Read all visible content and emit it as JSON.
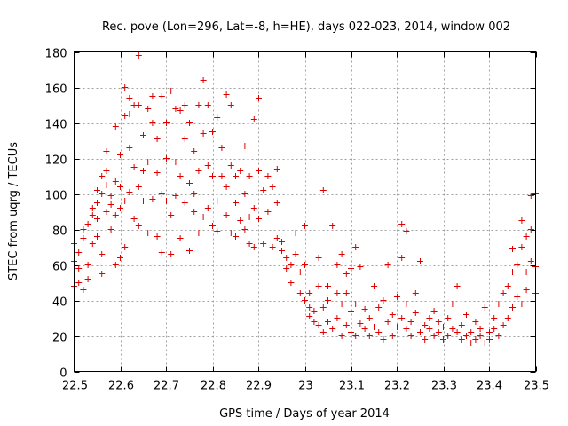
{
  "chart_data": {
    "type": "scatter",
    "title": "Rec. pove (Lon=296, Lat=-8, h=HE), days 022-023, 2014, window 002",
    "xlabel": "GPS time / Days of year 2014",
    "ylabel": "STEC from uqrg / TECUs",
    "xlim": [
      22.5,
      23.5
    ],
    "ylim": [
      0,
      180
    ],
    "grid": true,
    "marker": "plus",
    "color": "#e00000",
    "x_ticks": [
      22.5,
      22.6,
      22.7,
      22.8,
      22.9,
      23.0,
      23.1,
      23.2,
      23.3,
      23.4,
      23.5
    ],
    "x_tick_labels": [
      "22.5",
      "22.6",
      "22.7",
      "22.8",
      "22.9",
      "23",
      "23.1",
      "23.2",
      "23.3",
      "23.4",
      "23.5"
    ],
    "y_ticks": [
      0,
      20,
      40,
      60,
      80,
      100,
      120,
      140,
      160,
      180
    ],
    "y_tick_labels": [
      "0",
      "20",
      "40",
      "60",
      "80",
      "100",
      "120",
      "140",
      "160",
      "180"
    ],
    "series": [
      {
        "name": "STEC",
        "points": [
          [
            22.5,
            48
          ],
          [
            22.5,
            62
          ],
          [
            22.5,
            72
          ],
          [
            22.51,
            50
          ],
          [
            22.51,
            58
          ],
          [
            22.51,
            67
          ],
          [
            22.52,
            46
          ],
          [
            22.52,
            75
          ],
          [
            22.52,
            80
          ],
          [
            22.53,
            60
          ],
          [
            22.53,
            83
          ],
          [
            22.53,
            52
          ],
          [
            22.54,
            72
          ],
          [
            22.54,
            88
          ],
          [
            22.54,
            92
          ],
          [
            22.55,
            76
          ],
          [
            22.55,
            86
          ],
          [
            22.55,
            95
          ],
          [
            22.55,
            102
          ],
          [
            22.56,
            55
          ],
          [
            22.56,
            66
          ],
          [
            22.56,
            100
          ],
          [
            22.56,
            110
          ],
          [
            22.57,
            90
          ],
          [
            22.57,
            105
          ],
          [
            22.57,
            113
          ],
          [
            22.57,
            124
          ],
          [
            22.58,
            80
          ],
          [
            22.58,
            94
          ],
          [
            22.58,
            99
          ],
          [
            22.59,
            60
          ],
          [
            22.59,
            88
          ],
          [
            22.59,
            107
          ],
          [
            22.59,
            138
          ],
          [
            22.6,
            64
          ],
          [
            22.6,
            92
          ],
          [
            22.6,
            104
          ],
          [
            22.6,
            122
          ],
          [
            22.61,
            70
          ],
          [
            22.61,
            96
          ],
          [
            22.61,
            144
          ],
          [
            22.61,
            160
          ],
          [
            22.62,
            101
          ],
          [
            22.62,
            126
          ],
          [
            22.62,
            145
          ],
          [
            22.62,
            154
          ],
          [
            22.63,
            150
          ],
          [
            22.63,
            115
          ],
          [
            22.63,
            86
          ],
          [
            22.64,
            178
          ],
          [
            22.64,
            150
          ],
          [
            22.64,
            104
          ],
          [
            22.64,
            82
          ],
          [
            22.65,
            96
          ],
          [
            22.65,
            133
          ],
          [
            22.65,
            113
          ],
          [
            22.66,
            118
          ],
          [
            22.66,
            78
          ],
          [
            22.66,
            148
          ],
          [
            22.67,
            140
          ],
          [
            22.67,
            97
          ],
          [
            22.67,
            155
          ],
          [
            22.68,
            76
          ],
          [
            22.68,
            112
          ],
          [
            22.68,
            131
          ],
          [
            22.69,
            155
          ],
          [
            22.69,
            67
          ],
          [
            22.69,
            100
          ],
          [
            22.7,
            96
          ],
          [
            22.7,
            120
          ],
          [
            22.7,
            140
          ],
          [
            22.71,
            158
          ],
          [
            22.71,
            66
          ],
          [
            22.71,
            88
          ],
          [
            22.72,
            99
          ],
          [
            22.72,
            148
          ],
          [
            22.72,
            118
          ],
          [
            22.73,
            147
          ],
          [
            22.73,
            110
          ],
          [
            22.73,
            75
          ],
          [
            22.74,
            95
          ],
          [
            22.74,
            131
          ],
          [
            22.74,
            150
          ],
          [
            22.75,
            68
          ],
          [
            22.75,
            106
          ],
          [
            22.75,
            140
          ],
          [
            22.76,
            90
          ],
          [
            22.76,
            124
          ],
          [
            22.76,
            100
          ],
          [
            22.77,
            150
          ],
          [
            22.77,
            78
          ],
          [
            22.77,
            113
          ],
          [
            22.78,
            134
          ],
          [
            22.78,
            87
          ],
          [
            22.78,
            164
          ],
          [
            22.79,
            92
          ],
          [
            22.79,
            116
          ],
          [
            22.79,
            150
          ],
          [
            22.8,
            82
          ],
          [
            22.8,
            110
          ],
          [
            22.8,
            135
          ],
          [
            22.81,
            96
          ],
          [
            22.81,
            79
          ],
          [
            22.81,
            143
          ],
          [
            22.82,
            110
          ],
          [
            22.82,
            126
          ],
          [
            22.83,
            88
          ],
          [
            22.83,
            104
          ],
          [
            22.83,
            156
          ],
          [
            22.84,
            78
          ],
          [
            22.84,
            116
          ],
          [
            22.84,
            150
          ],
          [
            22.85,
            95
          ],
          [
            22.85,
            76
          ],
          [
            22.85,
            110
          ],
          [
            22.86,
            85
          ],
          [
            22.86,
            113
          ],
          [
            22.87,
            80
          ],
          [
            22.87,
            100
          ],
          [
            22.87,
            127
          ],
          [
            22.88,
            87
          ],
          [
            22.88,
            72
          ],
          [
            22.88,
            110
          ],
          [
            22.89,
            92
          ],
          [
            22.89,
            142
          ],
          [
            22.89,
            70
          ],
          [
            22.9,
            86
          ],
          [
            22.9,
            113
          ],
          [
            22.9,
            154
          ],
          [
            22.91,
            72
          ],
          [
            22.91,
            102
          ],
          [
            22.92,
            90
          ],
          [
            22.92,
            110
          ],
          [
            22.93,
            70
          ],
          [
            22.93,
            104
          ],
          [
            22.94,
            75
          ],
          [
            22.94,
            114
          ],
          [
            22.94,
            95
          ],
          [
            22.95,
            68
          ],
          [
            22.95,
            73
          ],
          [
            22.96,
            58
          ],
          [
            22.96,
            64
          ],
          [
            22.97,
            60
          ],
          [
            22.97,
            50
          ],
          [
            22.98,
            66
          ],
          [
            22.98,
            78
          ],
          [
            22.99,
            56
          ],
          [
            22.99,
            44
          ],
          [
            23.0,
            40
          ],
          [
            23.0,
            82
          ],
          [
            23.0,
            60
          ],
          [
            23.01,
            36
          ],
          [
            23.01,
            44
          ],
          [
            23.01,
            31
          ],
          [
            23.02,
            28
          ],
          [
            23.02,
            34
          ],
          [
            23.03,
            26
          ],
          [
            23.03,
            48
          ],
          [
            23.03,
            64
          ],
          [
            23.04,
            36
          ],
          [
            23.04,
            102
          ],
          [
            23.04,
            22
          ],
          [
            23.05,
            28
          ],
          [
            23.05,
            40
          ],
          [
            23.05,
            48
          ],
          [
            23.06,
            82
          ],
          [
            23.06,
            24
          ],
          [
            23.07,
            44
          ],
          [
            23.07,
            60
          ],
          [
            23.07,
            30
          ],
          [
            23.08,
            66
          ],
          [
            23.08,
            20
          ],
          [
            23.08,
            38
          ],
          [
            23.09,
            55
          ],
          [
            23.09,
            26
          ],
          [
            23.09,
            44
          ],
          [
            23.1,
            58
          ],
          [
            23.1,
            22
          ],
          [
            23.1,
            34
          ],
          [
            23.11,
            70
          ],
          [
            23.11,
            20
          ],
          [
            23.11,
            38
          ],
          [
            23.12,
            59
          ],
          [
            23.12,
            27
          ],
          [
            23.13,
            24
          ],
          [
            23.13,
            35
          ],
          [
            23.14,
            30
          ],
          [
            23.14,
            20
          ],
          [
            23.15,
            48
          ],
          [
            23.15,
            25
          ],
          [
            23.16,
            36
          ],
          [
            23.16,
            22
          ],
          [
            23.17,
            40
          ],
          [
            23.17,
            18
          ],
          [
            23.18,
            60
          ],
          [
            23.18,
            28
          ],
          [
            23.19,
            32
          ],
          [
            23.19,
            20
          ],
          [
            23.2,
            42
          ],
          [
            23.2,
            25
          ],
          [
            23.21,
            83
          ],
          [
            23.21,
            30
          ],
          [
            23.21,
            64
          ],
          [
            23.22,
            79
          ],
          [
            23.22,
            24
          ],
          [
            23.22,
            38
          ],
          [
            23.23,
            28
          ],
          [
            23.23,
            20
          ],
          [
            23.24,
            33
          ],
          [
            23.24,
            44
          ],
          [
            23.25,
            22
          ],
          [
            23.25,
            62
          ],
          [
            23.26,
            26
          ],
          [
            23.26,
            18
          ],
          [
            23.27,
            30
          ],
          [
            23.27,
            24
          ],
          [
            23.28,
            20
          ],
          [
            23.28,
            34
          ],
          [
            23.29,
            22
          ],
          [
            23.29,
            28
          ],
          [
            23.3,
            18
          ],
          [
            23.3,
            25
          ],
          [
            23.31,
            30
          ],
          [
            23.31,
            20
          ],
          [
            23.32,
            24
          ],
          [
            23.32,
            38
          ],
          [
            23.33,
            22
          ],
          [
            23.33,
            48
          ],
          [
            23.34,
            18
          ],
          [
            23.34,
            26
          ],
          [
            23.35,
            20
          ],
          [
            23.35,
            32
          ],
          [
            23.36,
            16
          ],
          [
            23.36,
            22
          ],
          [
            23.37,
            28
          ],
          [
            23.37,
            18
          ],
          [
            23.38,
            24
          ],
          [
            23.38,
            20
          ],
          [
            23.39,
            36
          ],
          [
            23.39,
            16
          ],
          [
            23.4,
            22
          ],
          [
            23.4,
            18
          ],
          [
            23.41,
            30
          ],
          [
            23.41,
            24
          ],
          [
            23.42,
            20
          ],
          [
            23.42,
            38
          ],
          [
            23.43,
            26
          ],
          [
            23.43,
            44
          ],
          [
            23.44,
            30
          ],
          [
            23.44,
            48
          ],
          [
            23.45,
            36
          ],
          [
            23.45,
            56
          ],
          [
            23.45,
            69
          ],
          [
            23.46,
            42
          ],
          [
            23.46,
            60
          ],
          [
            23.47,
            38
          ],
          [
            23.47,
            70
          ],
          [
            23.47,
            85
          ],
          [
            23.48,
            46
          ],
          [
            23.48,
            56
          ],
          [
            23.48,
            76
          ],
          [
            23.49,
            62
          ],
          [
            23.49,
            80
          ],
          [
            23.49,
            99
          ],
          [
            23.5,
            44
          ],
          [
            23.5,
            59
          ],
          [
            23.5,
            100
          ]
        ]
      }
    ]
  }
}
